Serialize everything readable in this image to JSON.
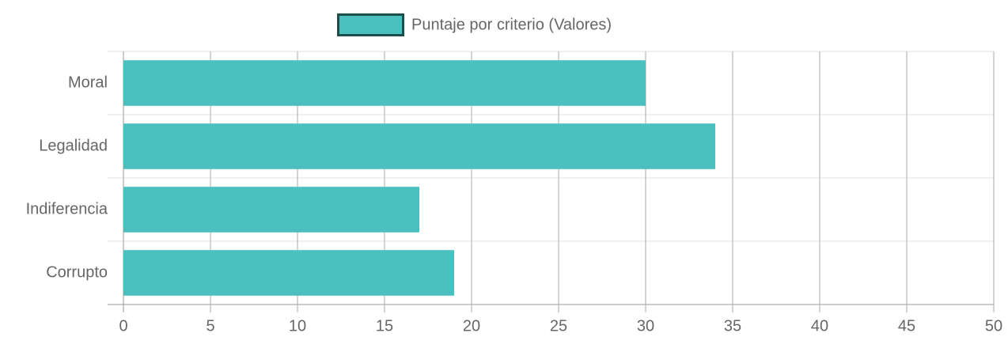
{
  "chart_data": {
    "type": "hbar",
    "categories": [
      "Moral",
      "Legalidad",
      "Indiferencia",
      "Corrupto"
    ],
    "series": [
      {
        "name": "Puntaje por criterio (Valores)",
        "color": "#4bc0c0",
        "values": [
          30,
          34,
          17,
          19
        ]
      }
    ],
    "xlim": [
      0,
      50
    ],
    "xticks": [
      0,
      5,
      10,
      15,
      20,
      25,
      30,
      35,
      40,
      45,
      50
    ],
    "grid": true,
    "legend": "top"
  }
}
